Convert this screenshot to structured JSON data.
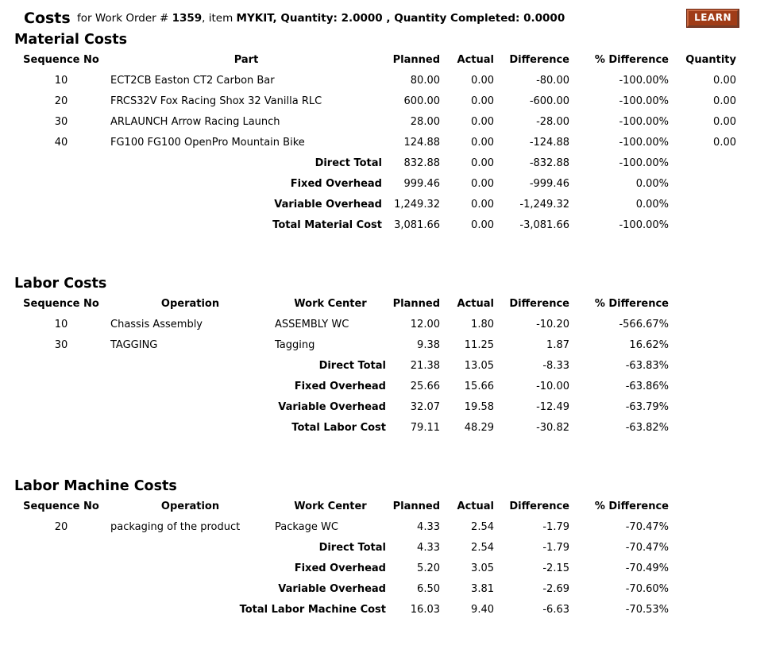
{
  "header": {
    "title": "Costs",
    "for_text": " for Work Order # ",
    "work_order_number": "1359",
    "item_text": ", item ",
    "item_details": "MYKIT, Quantity: 2.0000 , Quantity Completed: 0.0000",
    "learn_label": "LEARN"
  },
  "colors": {
    "learn_bg": "#a03c17",
    "learn_outline": "#6b2410",
    "learn_text": "#ffffff",
    "text": "#000000",
    "background": "#ffffff"
  },
  "tables": {
    "material_costs": {
      "title": "Material Costs",
      "columns": [
        "Sequence No",
        "Part",
        "Planned",
        "Actual",
        "Difference",
        "% Difference",
        "Quantity"
      ],
      "rows": [
        [
          "10",
          "ECT2CB Easton CT2 Carbon Bar",
          "80.00",
          "0.00",
          "-80.00",
          "-100.00%",
          "0.00"
        ],
        [
          "20",
          "FRCS32V Fox Racing Shox 32 Vanilla RLC",
          "600.00",
          "0.00",
          "-600.00",
          "-100.00%",
          "0.00"
        ],
        [
          "30",
          "ARLAUNCH Arrow Racing Launch",
          "28.00",
          "0.00",
          "-28.00",
          "-100.00%",
          "0.00"
        ],
        [
          "40",
          "FG100 FG100 OpenPro Mountain Bike",
          "124.88",
          "0.00",
          "-124.88",
          "-100.00%",
          "0.00"
        ]
      ],
      "totals": [
        [
          "Direct Total",
          "832.88",
          "0.00",
          "-832.88",
          "-100.00%",
          ""
        ],
        [
          "Fixed Overhead",
          "999.46",
          "0.00",
          "-999.46",
          "0.00%",
          ""
        ],
        [
          "Variable Overhead",
          "1,249.32",
          "0.00",
          "-1,249.32",
          "0.00%",
          ""
        ],
        [
          "Total Material Cost",
          "3,081.66",
          "0.00",
          "-3,081.66",
          "-100.00%",
          ""
        ]
      ]
    },
    "labor_costs": {
      "title": "Labor Costs",
      "columns": [
        "Sequence No",
        "Operation",
        "Work Center",
        "Planned",
        "Actual",
        "Difference",
        "% Difference"
      ],
      "rows": [
        [
          "10",
          "Chassis Assembly",
          "ASSEMBLY WC",
          "12.00",
          "1.80",
          "-10.20",
          "-566.67%"
        ],
        [
          "30",
          "TAGGING",
          "Tagging",
          "9.38",
          "11.25",
          "1.87",
          "16.62%"
        ]
      ],
      "totals": [
        [
          "Direct Total",
          "21.38",
          "13.05",
          "-8.33",
          "-63.83%"
        ],
        [
          "Fixed Overhead",
          "25.66",
          "15.66",
          "-10.00",
          "-63.86%"
        ],
        [
          "Variable Overhead",
          "32.07",
          "19.58",
          "-12.49",
          "-63.79%"
        ],
        [
          "Total Labor Cost",
          "79.11",
          "48.29",
          "-30.82",
          "-63.82%"
        ]
      ]
    },
    "labor_machine_costs": {
      "title": "Labor Machine Costs",
      "columns": [
        "Sequence No",
        "Operation",
        "Work Center",
        "Planned",
        "Actual",
        "Difference",
        "% Difference"
      ],
      "rows": [
        [
          "20",
          "packaging of the product",
          "Package WC",
          "4.33",
          "2.54",
          "-1.79",
          "-70.47%"
        ]
      ],
      "totals": [
        [
          "Direct Total",
          "4.33",
          "2.54",
          "-1.79",
          "-70.47%"
        ],
        [
          "Fixed Overhead",
          "5.20",
          "3.05",
          "-2.15",
          "-70.49%"
        ],
        [
          "Variable Overhead",
          "6.50",
          "3.81",
          "-2.69",
          "-70.60%"
        ],
        [
          "Total Labor Machine Cost",
          "16.03",
          "9.40",
          "-6.63",
          "-70.53%"
        ]
      ]
    }
  }
}
